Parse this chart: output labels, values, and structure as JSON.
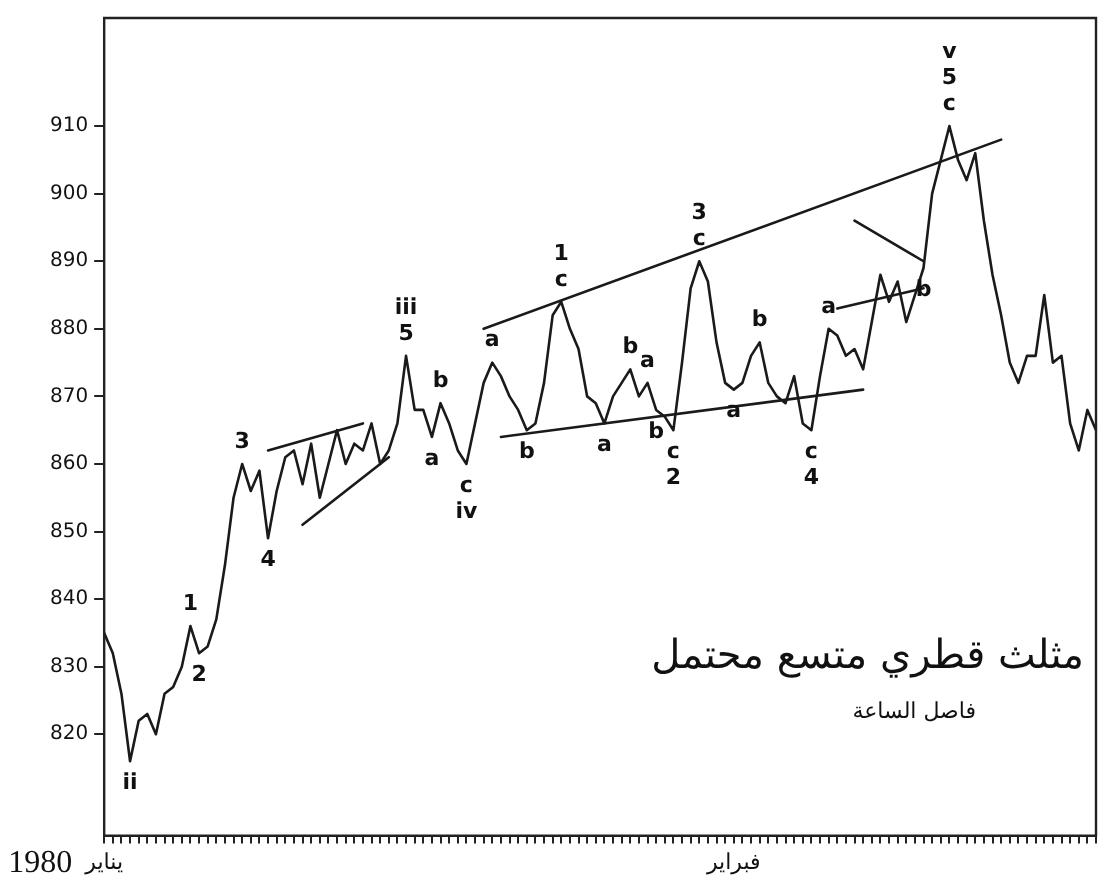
{
  "chart_data": {
    "type": "line",
    "title": "مثلث قطري متسع محتمل",
    "subtitle": "فاصل الساعة",
    "categories": [
      "يناير",
      null,
      null,
      null,
      null,
      null,
      null,
      null,
      null,
      null,
      null,
      null,
      null,
      null,
      null,
      null,
      null,
      null,
      null,
      null,
      null,
      null,
      null,
      null,
      null,
      null,
      null,
      null,
      null,
      null,
      null,
      null,
      null,
      null,
      null,
      null,
      null,
      null,
      null,
      null,
      null,
      null,
      null,
      null,
      null,
      null,
      null,
      null,
      null,
      null,
      null,
      null,
      null,
      null,
      null,
      null,
      null,
      null,
      null,
      null,
      null,
      null,
      null,
      null,
      null,
      null,
      null,
      null,
      null,
      null,
      null,
      null,
      null,
      "فبراير",
      null,
      null,
      null,
      null,
      null,
      null,
      null,
      null,
      null,
      null,
      null,
      null,
      null,
      null,
      null,
      null,
      null,
      null,
      null,
      null,
      null,
      null,
      null,
      null,
      null,
      null,
      null,
      null,
      null,
      null,
      null,
      null,
      null,
      null,
      null,
      null,
      null,
      null,
      null,
      null,
      null,
      null
    ],
    "ylim": [
      805,
      926
    ],
    "yticks": [
      820,
      830,
      840,
      850,
      860,
      870,
      880,
      890,
      900,
      910
    ],
    "marker": "none",
    "line_style": "solid",
    "series": [
      {
        "color": "#1a1a1a",
        "values": [
          835,
          832,
          826,
          816,
          822,
          823,
          820,
          826,
          827,
          830,
          836,
          832,
          833,
          837,
          845,
          855,
          860,
          856,
          859,
          849,
          856,
          861,
          862,
          857,
          863,
          855,
          860,
          865,
          860,
          863,
          862,
          866,
          860,
          862,
          866,
          876,
          868,
          868,
          864,
          869,
          866,
          862,
          860,
          866,
          872,
          875,
          873,
          870,
          868,
          865,
          866,
          872,
          882,
          884,
          880,
          877,
          870,
          869,
          866,
          870,
          872,
          874,
          870,
          872,
          868,
          867,
          865,
          875,
          886,
          890,
          887,
          878,
          872,
          871,
          872,
          876,
          878,
          872,
          870,
          869,
          873,
          866,
          865,
          873,
          880,
          879,
          876,
          877,
          874,
          881,
          888,
          884,
          887,
          881,
          885,
          889,
          900,
          905,
          910,
          905,
          902,
          906,
          896,
          888,
          882,
          875,
          872,
          876,
          876,
          885,
          875,
          876,
          866,
          862,
          868,
          865
        ]
      },
      {
        "type": "line",
        "color": "#1a1a1a",
        "values": [
          null,
          null,
          null,
          null,
          null,
          null,
          null,
          null,
          null,
          null,
          null,
          null,
          null,
          null,
          null,
          null,
          null,
          null,
          null,
          null,
          null,
          null,
          null,
          null,
          null,
          null,
          null,
          null,
          null,
          null,
          null,
          null,
          null,
          null,
          null,
          null,
          null,
          null,
          null,
          null,
          null,
          null,
          null,
          null,
          880,
          null,
          null,
          null,
          null,
          null,
          null,
          null,
          null,
          null,
          null,
          null,
          null,
          null,
          null,
          null,
          null,
          null,
          null,
          null,
          null,
          null,
          null,
          null,
          null,
          null,
          null,
          null,
          null,
          null,
          null,
          null,
          null,
          null,
          null,
          null,
          null,
          null,
          null,
          null,
          null,
          null,
          null,
          null,
          null,
          null,
          null,
          null,
          null,
          null,
          null,
          null,
          null,
          null,
          null,
          null,
          null,
          null,
          null,
          null,
          908,
          null,
          null,
          null,
          null,
          null,
          null,
          null,
          null,
          null,
          null,
          null
        ]
      },
      {
        "type": "line",
        "color": "#1a1a1a",
        "values": [
          null,
          null,
          null,
          null,
          null,
          null,
          null,
          null,
          null,
          null,
          null,
          null,
          null,
          null,
          null,
          null,
          null,
          null,
          null,
          null,
          null,
          null,
          null,
          null,
          null,
          null,
          null,
          null,
          null,
          null,
          null,
          null,
          null,
          null,
          null,
          null,
          null,
          null,
          null,
          null,
          null,
          null,
          null,
          null,
          null,
          null,
          864,
          null,
          null,
          null,
          null,
          null,
          null,
          null,
          null,
          null,
          null,
          null,
          null,
          null,
          null,
          null,
          null,
          null,
          null,
          null,
          null,
          null,
          null,
          null,
          null,
          null,
          null,
          null,
          null,
          null,
          null,
          null,
          null,
          null,
          null,
          null,
          null,
          null,
          null,
          null,
          null,
          null,
          871,
          null,
          null,
          null,
          null,
          null,
          null,
          null,
          null,
          null,
          null,
          null,
          null,
          null,
          null,
          null,
          null,
          null,
          null,
          null,
          null,
          null,
          null,
          null,
          null,
          null,
          null,
          null
        ]
      },
      {
        "type": "line",
        "color": "#1a1a1a",
        "values": [
          null,
          null,
          null,
          null,
          null,
          null,
          null,
          null,
          null,
          null,
          null,
          null,
          null,
          null,
          null,
          null,
          null,
          null,
          null,
          862,
          null,
          null,
          null,
          null,
          null,
          null,
          null,
          null,
          null,
          null,
          866,
          null,
          null,
          null,
          null,
          null,
          null,
          null,
          null,
          null,
          null,
          null,
          null,
          null,
          null,
          null,
          null,
          null,
          null,
          null,
          null,
          null,
          null,
          null,
          null,
          null,
          null,
          null,
          null,
          null,
          null,
          null,
          null,
          null,
          null,
          null,
          null,
          null,
          null,
          null,
          null,
          null,
          null,
          null,
          null,
          null,
          null,
          null,
          null,
          null,
          null,
          null,
          null,
          null,
          null,
          null,
          null,
          null,
          null,
          null,
          null,
          null,
          null,
          null,
          null,
          null,
          null,
          null,
          null,
          null,
          null,
          null,
          null,
          null,
          null,
          null,
          null,
          null,
          null,
          null,
          null,
          null,
          null,
          null,
          null,
          null
        ]
      },
      {
        "type": "line",
        "color": "#1a1a1a",
        "values": [
          null,
          null,
          null,
          null,
          null,
          null,
          null,
          null,
          null,
          null,
          null,
          null,
          null,
          null,
          null,
          null,
          null,
          null,
          null,
          null,
          null,
          null,
          null,
          851,
          null,
          null,
          null,
          null,
          null,
          null,
          null,
          null,
          null,
          861,
          null,
          null,
          null,
          null,
          null,
          null,
          null,
          null,
          null,
          null,
          null,
          null,
          null,
          null,
          null,
          null,
          null,
          null,
          null,
          null,
          null,
          null,
          null,
          null,
          null,
          null,
          null,
          null,
          null,
          null,
          null,
          null,
          null,
          null,
          null,
          null,
          null,
          null,
          null,
          null,
          null,
          null,
          null,
          null,
          null,
          null,
          null,
          null,
          null,
          null,
          null,
          null,
          null,
          null,
          null,
          null,
          null,
          null,
          null,
          null,
          null,
          null,
          null,
          null,
          null,
          null,
          null,
          null,
          null,
          null,
          null,
          null,
          null,
          null,
          null,
          null,
          null,
          null,
          null,
          null,
          null,
          null
        ]
      },
      {
        "type": "line",
        "color": "#1a1a1a",
        "values": [
          null,
          null,
          null,
          null,
          null,
          null,
          null,
          null,
          null,
          null,
          null,
          null,
          null,
          null,
          null,
          null,
          null,
          null,
          null,
          null,
          null,
          null,
          null,
          null,
          null,
          null,
          null,
          null,
          null,
          null,
          null,
          null,
          null,
          null,
          null,
          null,
          null,
          null,
          null,
          null,
          null,
          null,
          null,
          null,
          null,
          null,
          null,
          null,
          null,
          null,
          null,
          null,
          null,
          null,
          null,
          null,
          null,
          null,
          null,
          null,
          null,
          null,
          null,
          null,
          null,
          null,
          null,
          null,
          null,
          null,
          null,
          null,
          null,
          null,
          null,
          null,
          null,
          null,
          null,
          null,
          null,
          null,
          null,
          null,
          null,
          null,
          null,
          896,
          null,
          null,
          null,
          null,
          null,
          null,
          null,
          890,
          null,
          null,
          null,
          null,
          null,
          null,
          null,
          null,
          null,
          null,
          null,
          null,
          null,
          null,
          null,
          null,
          null,
          null,
          null,
          null
        ]
      },
      {
        "type": "line",
        "color": "#1a1a1a",
        "values": [
          null,
          null,
          null,
          null,
          null,
          null,
          null,
          null,
          null,
          null,
          null,
          null,
          null,
          null,
          null,
          null,
          null,
          null,
          null,
          null,
          null,
          null,
          null,
          null,
          null,
          null,
          null,
          null,
          null,
          null,
          null,
          null,
          null,
          null,
          null,
          null,
          null,
          null,
          null,
          null,
          null,
          null,
          null,
          null,
          null,
          null,
          null,
          null,
          null,
          null,
          null,
          null,
          null,
          null,
          null,
          null,
          null,
          null,
          null,
          null,
          null,
          null,
          null,
          null,
          null,
          null,
          null,
          null,
          null,
          null,
          null,
          null,
          null,
          null,
          null,
          null,
          null,
          null,
          null,
          null,
          null,
          null,
          null,
          null,
          null,
          883,
          null,
          null,
          null,
          null,
          null,
          null,
          null,
          null,
          null,
          886,
          null,
          null,
          null,
          null,
          null,
          null,
          null,
          null,
          null,
          null,
          null,
          null,
          null,
          null,
          null,
          null,
          null,
          null,
          null,
          null
        ]
      }
    ],
    "annotations": [
      "1980",
      {
        "text": "ii",
        "y": 816
      },
      {
        "text": "1",
        "y": 836
      },
      {
        "text": "2",
        "y": 832
      },
      {
        "text": "3",
        "y": 860
      },
      {
        "text": "4",
        "y": 849
      },
      {
        "text": "5",
        "y": 876
      },
      {
        "text": "iii",
        "y": 876
      },
      {
        "text": "a",
        "y": 864
      },
      {
        "text": "b",
        "y": 869
      },
      {
        "text": "c",
        "y": 860
      },
      {
        "text": "iv",
        "y": 860
      },
      {
        "text": "a",
        "y": 875
      },
      {
        "text": "b",
        "y": 865
      },
      {
        "text": "c",
        "y": 884
      },
      {
        "text": "1",
        "y": 884
      },
      {
        "text": "a",
        "y": 866
      },
      {
        "text": "b",
        "y": 874
      },
      {
        "text": "a",
        "y": 872
      },
      {
        "text": "b",
        "y": 868
      },
      {
        "text": "c",
        "y": 865
      },
      {
        "text": "2",
        "y": 865
      },
      {
        "text": "c",
        "y": 890
      },
      {
        "text": "3",
        "y": 890
      },
      {
        "text": "a",
        "y": 871
      },
      {
        "text": "b",
        "y": 878
      },
      {
        "text": "c",
        "y": 865
      },
      {
        "text": "4",
        "y": 865
      },
      {
        "text": "a",
        "y": 880
      },
      {
        "text": "b",
        "y": 889
      },
      {
        "text": "c",
        "y": 910
      },
      {
        "text": "5",
        "y": 910
      },
      {
        "text": "v",
        "y": 910
      }
    ]
  }
}
